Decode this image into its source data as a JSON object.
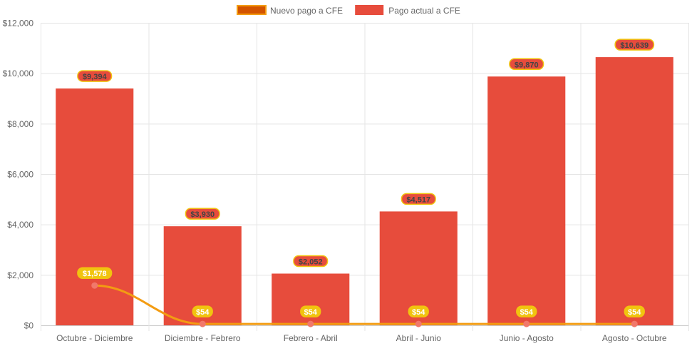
{
  "chart_data": {
    "type": "bar",
    "categories": [
      "Octubre - Diciembre",
      "Diciembre - Febrero",
      "Febrero - Abril",
      "Abril - Junio",
      "Junio - Agosto",
      "Agosto - Octubre"
    ],
    "series": [
      {
        "name": "Nuevo pago a CFE",
        "type": "line",
        "values": [
          1578,
          54,
          54,
          54,
          54,
          54
        ],
        "labels": [
          "$1,578",
          "$54",
          "$54",
          "$54",
          "$54",
          "$54"
        ],
        "color": "#f39c12",
        "fill": "#d35400",
        "point_color": "#f1786b",
        "label_bg": "#f1c40f"
      },
      {
        "name": "Pago actual a CFE",
        "type": "bar",
        "values": [
          9394,
          3930,
          2052,
          4517,
          9870,
          10639
        ],
        "labels": [
          "$9,394",
          "$3,930",
          "$2,052",
          "$4,517",
          "$9,870",
          "$10,639"
        ],
        "color": "#e74c3c",
        "label_border": "#f1c40f"
      }
    ],
    "ylim": [
      0,
      12000
    ],
    "yticks": [
      "$0",
      "$2,000",
      "$4,000",
      "$6,000",
      "$8,000",
      "$10,000",
      "$12,000"
    ],
    "grid": true,
    "legend_position": "top"
  }
}
